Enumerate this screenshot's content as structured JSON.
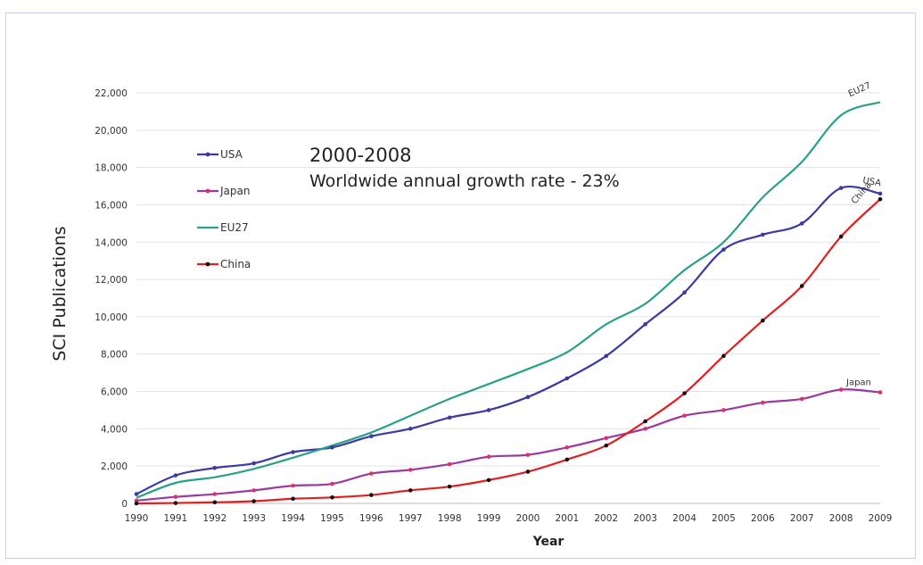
{
  "chart_data": {
    "type": "line",
    "title": "",
    "xlabel": "Year",
    "ylabel": "SCI  Publications",
    "x": [
      "1990",
      "1991",
      "1992",
      "1993",
      "1994",
      "1995",
      "1996",
      "1997",
      "1998",
      "1999",
      "2000",
      "2001",
      "2002",
      "2003",
      "2004",
      "2005",
      "2006",
      "2007",
      "2008",
      "2009"
    ],
    "ylim": [
      0,
      22000
    ],
    "yticks": [
      "0",
      "2,000",
      "4,000",
      "6,000",
      "8,000",
      "10,000",
      "12,000",
      "14,000",
      "16,000",
      "18,000",
      "20,000",
      "22,000"
    ],
    "ytick_values": [
      0,
      2000,
      4000,
      6000,
      8000,
      10000,
      12000,
      14000,
      16000,
      18000,
      20000,
      22000
    ],
    "grid": true,
    "legend_position": "upper-left",
    "annotation_lines": [
      "2000-2008",
      "Worldwide annual growth rate  -  23%"
    ],
    "series": [
      {
        "name": "USA",
        "color": "#3a3aa0",
        "marker": "dot",
        "end_label": "USA",
        "values": [
          500,
          1500,
          1900,
          2150,
          2750,
          3000,
          3600,
          4000,
          4600,
          5000,
          5700,
          6700,
          7900,
          9600,
          11300,
          13600,
          14400,
          15000,
          16900,
          16600
        ]
      },
      {
        "name": "Japan",
        "color": "#9a3aa0",
        "marker": "dot-red",
        "end_label": "Japan",
        "values": [
          150,
          350,
          500,
          700,
          950,
          1050,
          1600,
          1800,
          2100,
          2500,
          2600,
          3000,
          3500,
          4000,
          4700,
          5000,
          5400,
          5600,
          6100,
          5950
        ]
      },
      {
        "name": "EU27",
        "color": "#2aa088",
        "marker": "none",
        "end_label": "EU27",
        "values": [
          300,
          1100,
          1400,
          1850,
          2450,
          3100,
          3800,
          4700,
          5600,
          6400,
          7200,
          8100,
          9600,
          10700,
          12500,
          14000,
          16400,
          18300,
          20800,
          21500
        ]
      },
      {
        "name": "China",
        "color": "#e02020",
        "marker": "dot-black",
        "end_label": "China",
        "values": [
          0,
          20,
          60,
          120,
          250,
          320,
          450,
          700,
          900,
          1250,
          1700,
          2350,
          3100,
          4400,
          5900,
          7900,
          9800,
          11650,
          14300,
          16300
        ]
      }
    ]
  }
}
